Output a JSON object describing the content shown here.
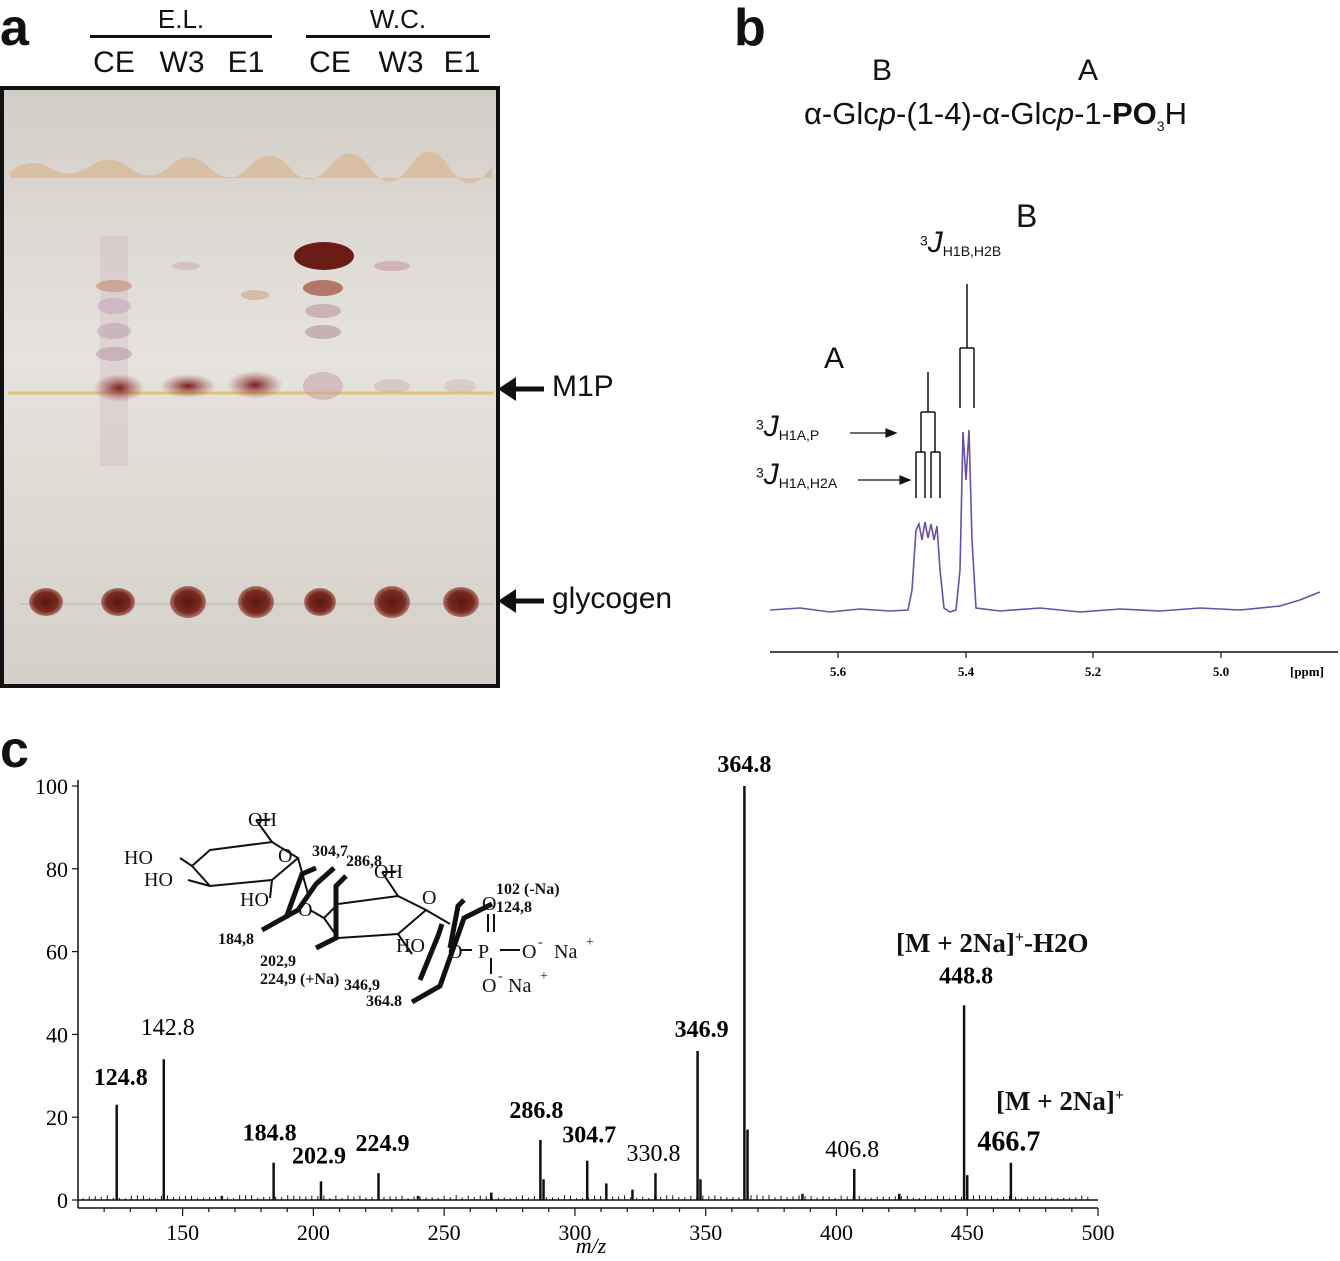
{
  "panel_a": {
    "letter": "a",
    "groups": [
      "E.L.",
      "W.C."
    ],
    "lanes": [
      "CE",
      "W3",
      "E1",
      "CE",
      "W3",
      "E1"
    ],
    "arrow_labels": [
      "M1P",
      "glycogen"
    ],
    "colors": {
      "tlc_background": "#d9d5ce",
      "spot": "#6e1f18",
      "front": "#d7bfa5",
      "m1p_line": "#e1c680"
    }
  },
  "panel_b": {
    "letter": "b",
    "residue_labels": [
      "B",
      "A"
    ],
    "structure_text": {
      "p1": "α-Glc",
      "p2": "p",
      "p3": "-(1-4)-α-Glc",
      "p4": "p",
      "p5": "-1-",
      "p6": "PO",
      "p7": "3",
      "p8": "H"
    },
    "peak_labels": {
      "B": "B",
      "A": "A"
    },
    "coupling": {
      "h1b_h2b": {
        "sup": "3",
        "j": "J",
        "sub": "H1B,H2B"
      },
      "h1a_p": {
        "sup": "3",
        "j": "J",
        "sub": "H1A,P"
      },
      "h1a_h2a": {
        "sup": "3",
        "j": "J",
        "sub": "H1A,H2A"
      }
    },
    "axis_ticks": [
      "5.6",
      "5.4",
      "5.2",
      "5.0"
    ],
    "axis_unit": "[ppm]",
    "spectrum_color": "#6a4fa8"
  },
  "panel_c": {
    "letter": "c",
    "structure": {
      "hydroxyls": [
        "OH",
        "HO",
        "HO",
        "HO",
        "OH",
        "HO"
      ],
      "ring_o": [
        "O",
        "O",
        "O",
        "O"
      ],
      "phosphate": {
        "o_top": "O",
        "p": "P",
        "o_right": "O",
        "neg1": "-",
        "na1": "Na",
        "plus1": "+",
        "o_bottom": "O",
        "neg2": "-",
        "na2": "Na",
        "plus2": "+"
      },
      "fragments": [
        "304,7",
        "286,8",
        "184,8",
        "202,9",
        "224,9 (+Na)",
        "346,9",
        "364,8",
        "102 (-Na)",
        "124,8"
      ]
    },
    "annotations": {
      "m_2na_h2o": {
        "base": "[M + 2Na]",
        "sup": "+",
        "tail": "-H2O"
      },
      "m_2na": {
        "base": "[M + 2Na]",
        "sup": "+"
      }
    }
  },
  "chart_data": {
    "type": "bar",
    "title": "",
    "xlabel": "m/z",
    "ylabel": "",
    "xlim": [
      110,
      500
    ],
    "ylim": [
      0,
      100
    ],
    "x_ticks": [
      150,
      200,
      250,
      300,
      350,
      400,
      450,
      500
    ],
    "y_ticks": [
      0,
      20,
      40,
      60,
      80,
      100
    ],
    "peaks": [
      {
        "mz": 124.8,
        "intensity": 23,
        "label": "124.8",
        "bold": true
      },
      {
        "mz": 142.8,
        "intensity": 34,
        "label": "142.8",
        "bold": false
      },
      {
        "mz": 165,
        "intensity": 1,
        "label": "",
        "bold": false
      },
      {
        "mz": 184.8,
        "intensity": 9,
        "label": "184.8",
        "bold": true
      },
      {
        "mz": 202.9,
        "intensity": 4.5,
        "label": "202.9",
        "bold": true
      },
      {
        "mz": 224.9,
        "intensity": 6.5,
        "label": "224.9",
        "bold": true
      },
      {
        "mz": 240,
        "intensity": 1,
        "label": "",
        "bold": false
      },
      {
        "mz": 268,
        "intensity": 1.8,
        "label": "",
        "bold": false
      },
      {
        "mz": 286.8,
        "intensity": 14.5,
        "label": "286.8",
        "bold": true
      },
      {
        "mz": 288,
        "intensity": 5,
        "label": "",
        "bold": false
      },
      {
        "mz": 304.7,
        "intensity": 9.5,
        "label": "304.7",
        "bold": true
      },
      {
        "mz": 312,
        "intensity": 4,
        "label": "",
        "bold": false
      },
      {
        "mz": 322,
        "intensity": 2.5,
        "label": "",
        "bold": false
      },
      {
        "mz": 330.8,
        "intensity": 6.5,
        "label": "330.8",
        "bold": false
      },
      {
        "mz": 346.9,
        "intensity": 36,
        "label": "346.9",
        "bold": true
      },
      {
        "mz": 348,
        "intensity": 5,
        "label": "",
        "bold": false
      },
      {
        "mz": 364.8,
        "intensity": 100,
        "label": "364.8",
        "bold": true
      },
      {
        "mz": 366,
        "intensity": 17,
        "label": "",
        "bold": false
      },
      {
        "mz": 387,
        "intensity": 1.5,
        "label": "",
        "bold": false
      },
      {
        "mz": 406.8,
        "intensity": 7.5,
        "label": "406.8",
        "bold": false
      },
      {
        "mz": 424,
        "intensity": 1.5,
        "label": "",
        "bold": false
      },
      {
        "mz": 448.8,
        "intensity": 47,
        "label": "448.8",
        "bold": true
      },
      {
        "mz": 450,
        "intensity": 6,
        "label": "",
        "bold": false
      },
      {
        "mz": 466.7,
        "intensity": 9,
        "label": "466.7",
        "bold": true
      }
    ]
  }
}
